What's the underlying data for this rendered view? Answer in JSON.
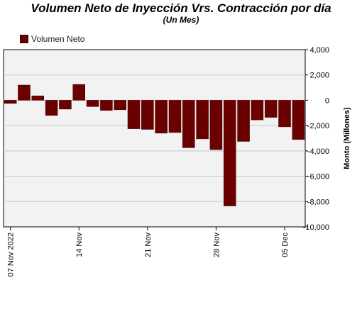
{
  "chart_data": {
    "type": "bar",
    "title": "Volumen Neto de Inyección Vrs. Contracción por día",
    "subtitle": "(Un Mes)",
    "ylabel": "Monto (Millones)",
    "xlabel": "",
    "ylim": [
      -10000,
      4000
    ],
    "yticks": [
      "4,000",
      "2,000",
      "0",
      "-2,000",
      "-4,000",
      "-6,000",
      "-8,000",
      "-10,000"
    ],
    "ytick_values": [
      4000,
      2000,
      0,
      -2000,
      -4000,
      -6000,
      -8000,
      -10000
    ],
    "grid": true,
    "legend_position": "top-left",
    "series": [
      {
        "name": "Volumen Neto",
        "color": "#6b0000",
        "values": [
          -250,
          1200,
          350,
          -1200,
          -700,
          1250,
          -500,
          -800,
          -750,
          -2250,
          -2300,
          -2600,
          -2550,
          -3750,
          -3050,
          -3900,
          -8350,
          -3250,
          -1550,
          -1350,
          -2100,
          -3100
        ]
      }
    ],
    "x_tick_labels": [
      {
        "label": "07 Nov 2022",
        "index": 0
      },
      {
        "label": "14 Nov",
        "index": 5
      },
      {
        "label": "21 Nov",
        "index": 10
      },
      {
        "label": "28 Nov",
        "index": 15
      },
      {
        "label": "05 Dec",
        "index": 20
      }
    ]
  }
}
